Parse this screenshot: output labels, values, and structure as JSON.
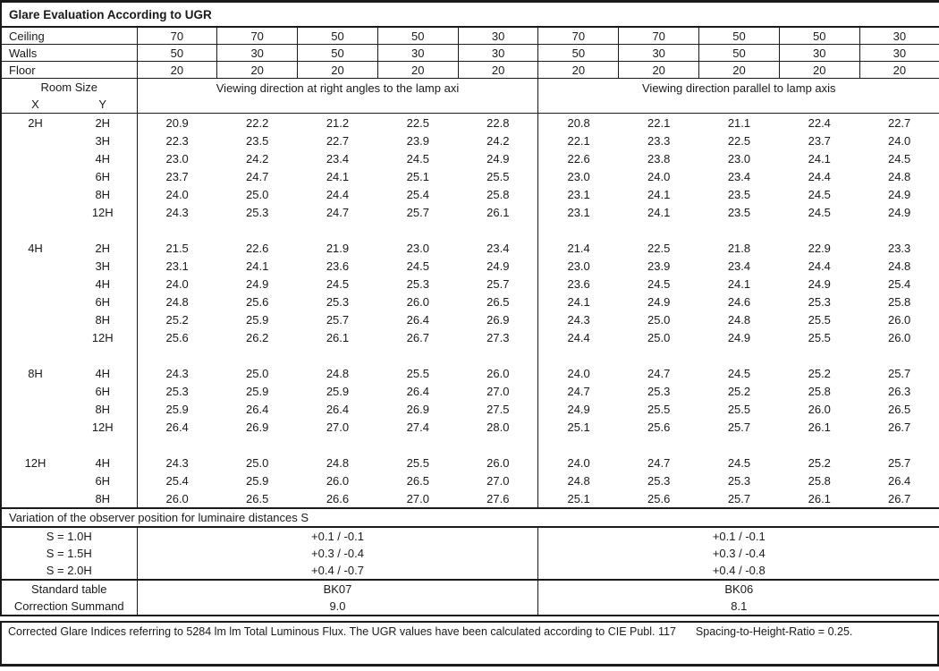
{
  "title": "Glare Evaluation According to UGR",
  "surfaces": {
    "rows": [
      {
        "label": "Ceiling",
        "values": [
          "70",
          "70",
          "50",
          "50",
          "30",
          "70",
          "70",
          "50",
          "50",
          "30"
        ]
      },
      {
        "label": "Walls",
        "values": [
          "50",
          "30",
          "50",
          "30",
          "30",
          "50",
          "30",
          "50",
          "30",
          "30"
        ]
      },
      {
        "label": "Floor",
        "values": [
          "20",
          "20",
          "20",
          "20",
          "20",
          "20",
          "20",
          "20",
          "20",
          "20"
        ]
      }
    ]
  },
  "header": {
    "room_size": "Room Size",
    "x": "X",
    "y": "Y",
    "left_group": "Viewing direction at right angles to the lamp axi",
    "right_group": "Viewing direction parallel to lamp axis"
  },
  "ugr_blocks": [
    {
      "x": "2H",
      "rows": [
        {
          "y": "2H",
          "values": [
            "20.9",
            "22.2",
            "21.2",
            "22.5",
            "22.8",
            "20.8",
            "22.1",
            "21.1",
            "22.4",
            "22.7"
          ]
        },
        {
          "y": "3H",
          "values": [
            "22.3",
            "23.5",
            "22.7",
            "23.9",
            "24.2",
            "22.1",
            "23.3",
            "22.5",
            "23.7",
            "24.0"
          ]
        },
        {
          "y": "4H",
          "values": [
            "23.0",
            "24.2",
            "23.4",
            "24.5",
            "24.9",
            "22.6",
            "23.8",
            "23.0",
            "24.1",
            "24.5"
          ]
        },
        {
          "y": "6H",
          "values": [
            "23.7",
            "24.7",
            "24.1",
            "25.1",
            "25.5",
            "23.0",
            "24.0",
            "23.4",
            "24.4",
            "24.8"
          ]
        },
        {
          "y": "8H",
          "values": [
            "24.0",
            "25.0",
            "24.4",
            "25.4",
            "25.8",
            "23.1",
            "24.1",
            "23.5",
            "24.5",
            "24.9"
          ]
        },
        {
          "y": "12H",
          "values": [
            "24.3",
            "25.3",
            "24.7",
            "25.7",
            "26.1",
            "23.1",
            "24.1",
            "23.5",
            "24.5",
            "24.9"
          ]
        }
      ]
    },
    {
      "x": "4H",
      "rows": [
        {
          "y": "2H",
          "values": [
            "21.5",
            "22.6",
            "21.9",
            "23.0",
            "23.4",
            "21.4",
            "22.5",
            "21.8",
            "22.9",
            "23.3"
          ]
        },
        {
          "y": "3H",
          "values": [
            "23.1",
            "24.1",
            "23.6",
            "24.5",
            "24.9",
            "23.0",
            "23.9",
            "23.4",
            "24.4",
            "24.8"
          ]
        },
        {
          "y": "4H",
          "values": [
            "24.0",
            "24.9",
            "24.5",
            "25.3",
            "25.7",
            "23.6",
            "24.5",
            "24.1",
            "24.9",
            "25.4"
          ]
        },
        {
          "y": "6H",
          "values": [
            "24.8",
            "25.6",
            "25.3",
            "26.0",
            "26.5",
            "24.1",
            "24.9",
            "24.6",
            "25.3",
            "25.8"
          ]
        },
        {
          "y": "8H",
          "values": [
            "25.2",
            "25.9",
            "25.7",
            "26.4",
            "26.9",
            "24.3",
            "25.0",
            "24.8",
            "25.5",
            "26.0"
          ]
        },
        {
          "y": "12H",
          "values": [
            "25.6",
            "26.2",
            "26.1",
            "26.7",
            "27.3",
            "24.4",
            "25.0",
            "24.9",
            "25.5",
            "26.0"
          ]
        }
      ]
    },
    {
      "x": "8H",
      "rows": [
        {
          "y": "4H",
          "values": [
            "24.3",
            "25.0",
            "24.8",
            "25.5",
            "26.0",
            "24.0",
            "24.7",
            "24.5",
            "25.2",
            "25.7"
          ]
        },
        {
          "y": "6H",
          "values": [
            "25.3",
            "25.9",
            "25.9",
            "26.4",
            "27.0",
            "24.7",
            "25.3",
            "25.2",
            "25.8",
            "26.3"
          ]
        },
        {
          "y": "8H",
          "values": [
            "25.9",
            "26.4",
            "26.4",
            "26.9",
            "27.5",
            "24.9",
            "25.5",
            "25.5",
            "26.0",
            "26.5"
          ]
        },
        {
          "y": "12H",
          "values": [
            "26.4",
            "26.9",
            "27.0",
            "27.4",
            "28.0",
            "25.1",
            "25.6",
            "25.7",
            "26.1",
            "26.7"
          ]
        }
      ]
    },
    {
      "x": "12H",
      "rows": [
        {
          "y": "4H",
          "values": [
            "24.3",
            "25.0",
            "24.8",
            "25.5",
            "26.0",
            "24.0",
            "24.7",
            "24.5",
            "25.2",
            "25.7"
          ]
        },
        {
          "y": "6H",
          "values": [
            "25.4",
            "25.9",
            "26.0",
            "26.5",
            "27.0",
            "24.8",
            "25.3",
            "25.3",
            "25.8",
            "26.4"
          ]
        },
        {
          "y": "8H",
          "values": [
            "26.0",
            "26.5",
            "26.6",
            "27.0",
            "27.6",
            "25.1",
            "25.6",
            "25.7",
            "26.1",
            "26.7"
          ]
        }
      ]
    }
  ],
  "variation": {
    "header": "Variation of the observer position for luminaire distances S",
    "rows": [
      {
        "label": "S = 1.0H",
        "left": "+0.1 / -0.1",
        "right": "+0.1 / -0.1"
      },
      {
        "label": "S = 1.5H",
        "left": "+0.3 / -0.4",
        "right": "+0.3 / -0.4"
      },
      {
        "label": "S = 2.0H",
        "left": "+0.4 / -0.7",
        "right": "+0.4 / -0.8"
      }
    ]
  },
  "summary": {
    "rows": [
      {
        "label": "Standard table",
        "left": "BK07",
        "right": "BK06"
      },
      {
        "label": "Correction Summand",
        "left": "9.0",
        "right": "8.1"
      }
    ]
  },
  "footer": {
    "text1": "Corrected Glare Indices referring to 5284 lm lm Total Luminous Flux. The UGR values have been calculated according to CIE Publ. 117",
    "text2": "Spacing-to-Height-Ratio = 0.25."
  }
}
